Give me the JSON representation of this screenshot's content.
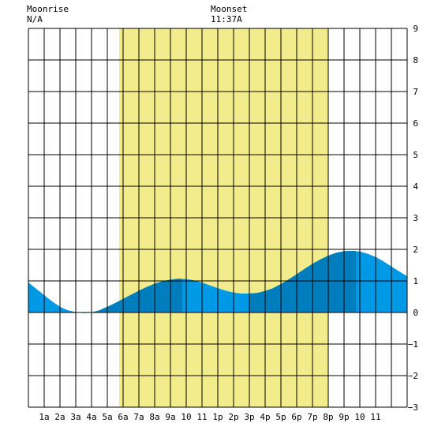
{
  "header": {
    "moonrise_label": "Moonrise",
    "moonrise_value": "N/A",
    "moonset_label": "Moonset",
    "moonset_value": "11:37A"
  },
  "colors": {
    "daylight": "#f3ec8c",
    "tide_light": "#0099e6",
    "tide_dark": "#007dbd",
    "grid": "#000000"
  },
  "chart_data": {
    "type": "area",
    "title": "",
    "xlabel": "",
    "ylabel": "",
    "x_range_hours": [
      0,
      24
    ],
    "ylim": [
      -3,
      9
    ],
    "x_tick_labels": [
      "1a",
      "2a",
      "3a",
      "4a",
      "5a",
      "6a",
      "7a",
      "8a",
      "9a",
      "10",
      "11",
      "1p",
      "2p",
      "3p",
      "4p",
      "5p",
      "6p",
      "7p",
      "8p",
      "9p",
      "10",
      "11"
    ],
    "y_tick_labels": [
      "9",
      "8",
      "7",
      "6",
      "5",
      "4",
      "3",
      "2",
      "1",
      "0",
      "−1",
      "−2",
      "−3"
    ],
    "daylight_hours": [
      5.75,
      19.0
    ],
    "tide_extremes": [
      {
        "type": "low",
        "hour": 3.5,
        "ft": -0.02
      },
      {
        "type": "high",
        "hour": 9.75,
        "ft": 1.07
      },
      {
        "type": "low",
        "hour": 14.0,
        "ft": 0.6
      },
      {
        "type": "high",
        "hour": 20.75,
        "ft": 1.95
      }
    ],
    "tide_series": {
      "hours": [
        0,
        0.5,
        1,
        1.5,
        2,
        2.5,
        3,
        3.5,
        4,
        4.5,
        5,
        5.5,
        6,
        6.5,
        7,
        7.5,
        8,
        8.5,
        9,
        9.5,
        10,
        10.5,
        11,
        11.5,
        12,
        12.5,
        13,
        13.5,
        14,
        14.5,
        15,
        15.5,
        16,
        16.5,
        17,
        17.5,
        18,
        18.5,
        19,
        19.5,
        20,
        20.5,
        21,
        21.5,
        22,
        22.5,
        23,
        23.5,
        24
      ],
      "ft": [
        0.95,
        0.75,
        0.55,
        0.35,
        0.18,
        0.07,
        0.01,
        -0.02,
        0.0,
        0.07,
        0.18,
        0.3,
        0.43,
        0.56,
        0.69,
        0.81,
        0.91,
        0.99,
        1.04,
        1.07,
        1.06,
        1.02,
        0.95,
        0.86,
        0.77,
        0.69,
        0.63,
        0.6,
        0.6,
        0.62,
        0.68,
        0.77,
        0.9,
        1.05,
        1.21,
        1.38,
        1.54,
        1.68,
        1.8,
        1.89,
        1.94,
        1.95,
        1.93,
        1.86,
        1.76,
        1.62,
        1.46,
        1.3,
        1.15
      ]
    },
    "dark_bands_hours": [
      [
        3.5,
        9.75
      ],
      [
        14.0,
        20.75
      ]
    ]
  }
}
